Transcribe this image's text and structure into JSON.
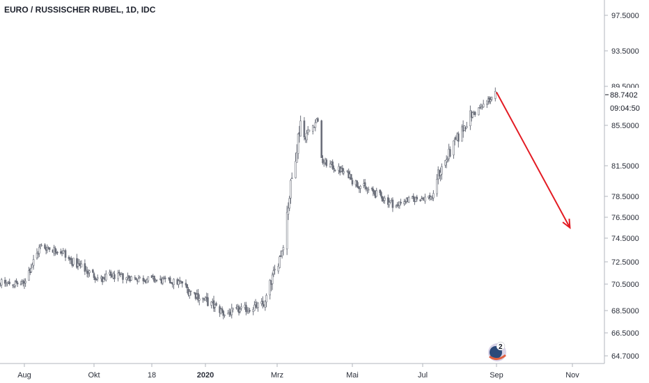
{
  "title": "EURO / RUSSISCHER RUBEL, 1D, IDC",
  "current_price": "88.7402",
  "countdown": "09:04:50",
  "badge_count": "2",
  "colors": {
    "candle": "#6b6f7a",
    "arrow": "#e31b23",
    "axis": "#b2b5be",
    "price_tag": "#ffffff"
  },
  "chart_data": {
    "type": "candlestick",
    "title": "EURO / RUSSISCHER RUBEL, 1D, IDC",
    "yaxis_ticks": [
      "97.5000",
      "93.5000",
      "89.5000",
      "85.5000",
      "81.5000",
      "78.5000",
      "76.5000",
      "74.5000",
      "72.5000",
      "70.5000",
      "68.5000",
      "66.5000",
      "64.7000"
    ],
    "xaxis_ticks": [
      {
        "label": "Aug",
        "bold": false
      },
      {
        "label": "Okt",
        "bold": false
      },
      {
        "label": "18",
        "bold": false
      },
      {
        "label": "2020",
        "bold": true
      },
      {
        "label": "Mrz",
        "bold": false
      },
      {
        "label": "Mai",
        "bold": false
      },
      {
        "label": "Jul",
        "bold": false
      },
      {
        "label": "Sep",
        "bold": false
      },
      {
        "label": "Nov",
        "bold": false
      }
    ],
    "ylim": [
      64.0,
      99.0
    ],
    "series": [
      {
        "start": "2019-07-01",
        "end": "2019-07-31",
        "from": 70.7,
        "to": 70.5
      },
      {
        "start": "2019-08-01",
        "end": "2019-08-15",
        "from": 70.8,
        "to": 73.8
      },
      {
        "start": "2019-08-16",
        "end": "2019-09-05",
        "from": 73.8,
        "to": 73.3
      },
      {
        "start": "2019-09-06",
        "end": "2019-10-10",
        "from": 72.9,
        "to": 70.7
      },
      {
        "start": "2019-10-11",
        "end": "2019-12-15",
        "from": 71.3,
        "to": 70.6
      },
      {
        "start": "2019-12-16",
        "end": "2020-01-15",
        "from": 70.2,
        "to": 68.4
      },
      {
        "start": "2020-01-16",
        "end": "2020-02-20",
        "from": 68.2,
        "to": 69.0
      },
      {
        "start": "2020-02-21",
        "end": "2020-03-05",
        "from": 69.5,
        "to": 73.5
      },
      {
        "start": "2020-03-06",
        "end": "2020-03-20",
        "from": 74.5,
        "to": 86.0
      },
      {
        "start": "2020-03-21",
        "end": "2020-04-05",
        "from": 84.0,
        "to": 86.5
      },
      {
        "start": "2020-04-06",
        "end": "2020-04-30",
        "from": 82.0,
        "to": 80.5
      },
      {
        "start": "2020-05-01",
        "end": "2020-06-10",
        "from": 80.0,
        "to": 77.5
      },
      {
        "start": "2020-06-11",
        "end": "2020-07-10",
        "from": 78.0,
        "to": 78.5
      },
      {
        "start": "2020-07-11",
        "end": "2020-08-10",
        "from": 80.0,
        "to": 86.5
      },
      {
        "start": "2020-08-11",
        "end": "2020-08-31",
        "from": 86.5,
        "to": 88.7
      }
    ],
    "annotation": {
      "type": "arrow",
      "from": {
        "date": "2020-09-01",
        "value": 88.9
      },
      "to": {
        "date": "2020-10-30",
        "value": 75.5
      }
    },
    "last_value": 88.7402
  }
}
